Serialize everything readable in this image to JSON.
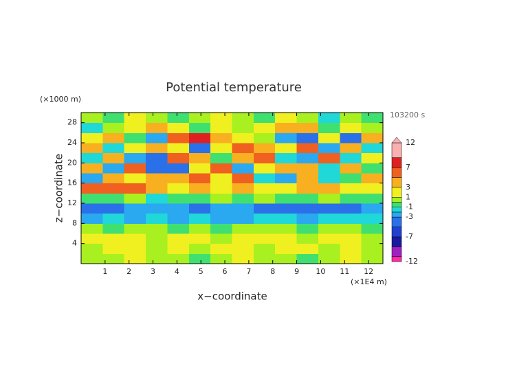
{
  "chart_data": {
    "type": "contour",
    "title": "Potential temperature",
    "z_unit": "(×1000 m)",
    "time_label": "103200 s",
    "x_unit": "(×1E4 m)",
    "xlabel": "x−coordinate",
    "ylabel": "z−coordinate",
    "xlim": [
      0,
      12.6
    ],
    "ylim": [
      0,
      30
    ],
    "xticks": [
      1,
      2,
      3,
      4,
      5,
      6,
      7,
      8,
      9,
      10,
      11,
      12
    ],
    "yticks": [
      4,
      8,
      12,
      16,
      20,
      24,
      28
    ],
    "values": [
      [
        0,
        0,
        1,
        0,
        0,
        -1,
        0,
        1,
        0,
        0,
        -1,
        0,
        1,
        0
      ],
      [
        0,
        1,
        2,
        0,
        1,
        0,
        2,
        1,
        0,
        1,
        2,
        0,
        1,
        0
      ],
      [
        1,
        2,
        1,
        0,
        2,
        1,
        0,
        1,
        2,
        1,
        0,
        1,
        2,
        0
      ],
      [
        0,
        -1,
        0,
        0,
        -1,
        0,
        -1,
        0,
        0,
        0,
        -1,
        0,
        0,
        -1
      ],
      [
        -3,
        -2,
        -3,
        -2,
        -3,
        -2,
        -3,
        -3,
        -2,
        -2,
        -3,
        -2,
        -2,
        -2
      ],
      [
        -4,
        -4,
        -3,
        -3,
        -3,
        -4,
        -3,
        -3,
        -4,
        -4,
        -4,
        -4,
        -4,
        -3
      ],
      [
        -1,
        -1,
        0,
        -2,
        -1,
        -1,
        0,
        -1,
        0,
        -1,
        -1,
        0,
        -1,
        -1
      ],
      [
        6,
        5,
        6,
        4,
        2,
        3,
        2,
        3,
        2,
        2,
        3,
        3,
        1,
        2
      ],
      [
        -3,
        4,
        2,
        4,
        3,
        5,
        2,
        5,
        -2,
        -3,
        4,
        -2,
        -1,
        3
      ],
      [
        4,
        -3,
        6,
        -4,
        -5,
        2,
        6,
        -3,
        2,
        4,
        3,
        -2,
        4,
        -1
      ],
      [
        -2,
        4,
        -3,
        -4,
        5,
        4,
        -1,
        4,
        6,
        -2,
        -3,
        6,
        -2,
        2
      ],
      [
        4,
        -2,
        2,
        4,
        2,
        -4,
        2,
        6,
        3,
        2,
        6,
        -3,
        4,
        -2
      ],
      [
        2,
        4,
        -1,
        -3,
        6,
        8,
        4,
        2,
        0,
        -3,
        -4,
        2,
        -4,
        3
      ],
      [
        -2,
        0,
        2,
        4,
        1,
        -1,
        2,
        0,
        1,
        4,
        3,
        -1,
        2,
        0
      ],
      [
        0,
        -1,
        1,
        0,
        -1,
        0,
        1,
        0,
        -1,
        1,
        0,
        -2,
        0,
        -1
      ]
    ],
    "colorbar": {
      "bounds": [
        -12,
        -11,
        -9,
        -7,
        -5,
        -3,
        -2,
        -1,
        0,
        1,
        3,
        5,
        7,
        9,
        12
      ],
      "colors": [
        "#ff2aa6",
        "#a020c0",
        "#1a1aa0",
        "#2040d0",
        "#2a70e8",
        "#2aa8f0",
        "#20d8d8",
        "#40e070",
        "#a8f020",
        "#f0f020",
        "#f8b020",
        "#f06020",
        "#e02020",
        "#f8b0b0"
      ],
      "ticks": [
        -12,
        -7,
        -3,
        -1,
        1,
        3,
        7,
        12
      ]
    }
  }
}
